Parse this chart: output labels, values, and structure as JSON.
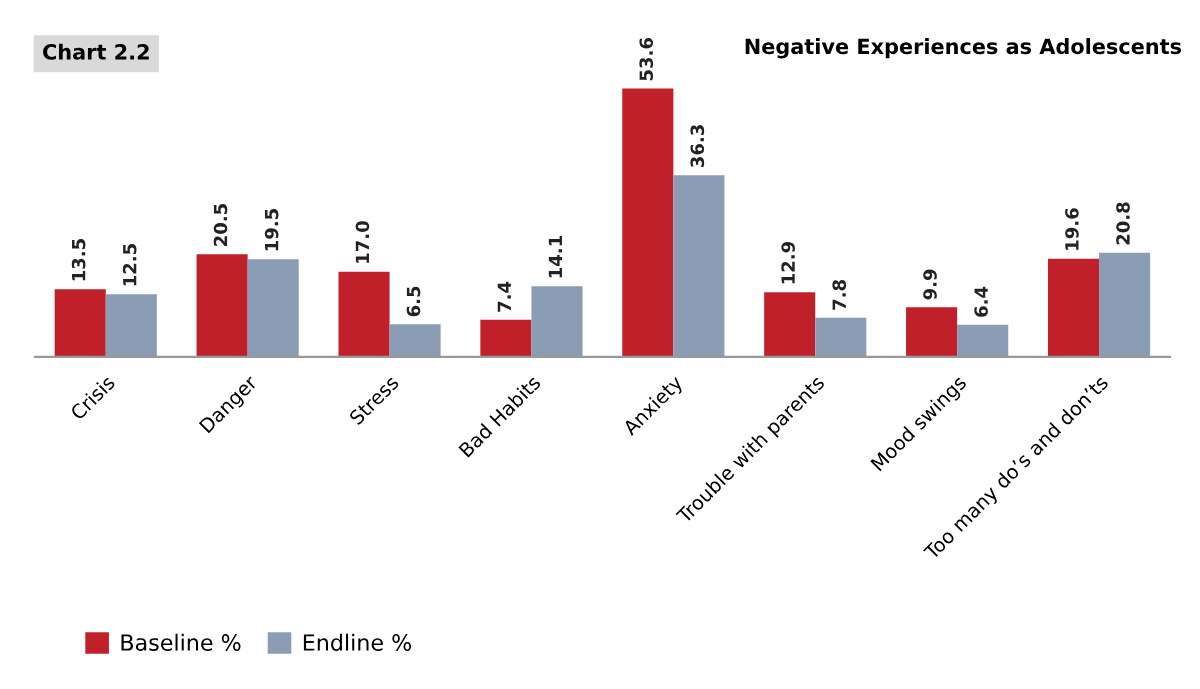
{
  "chart_data": {
    "type": "bar",
    "title": "Negative Experiences as Adolescents",
    "annotations": [
      "Chart 2.2"
    ],
    "categories": [
      "Crisis",
      "Danger",
      "Stress",
      "Bad Habits",
      "Anxiety",
      "Trouble with parents",
      "Mood swings",
      "Too many do’s and don’ts"
    ],
    "series": [
      {
        "name": "Baseline %",
        "color": "#c0202a",
        "values": [
          13.5,
          20.5,
          17.0,
          7.4,
          53.6,
          12.9,
          9.9,
          19.6
        ],
        "value_labels": [
          "13.5",
          "20.5",
          "17.0",
          "7.4",
          "53.6",
          "12.9",
          "9.9",
          "19.6"
        ]
      },
      {
        "name": "Endline %",
        "color": "#8a9db5",
        "values": [
          12.5,
          19.5,
          6.5,
          14.1,
          36.3,
          7.8,
          6.4,
          20.8
        ],
        "value_labels": [
          "12.5",
          "19.5",
          "6.5",
          "14.1",
          "36.3",
          "7.8",
          "6.4",
          "20.8"
        ]
      }
    ],
    "legend": "bottom left",
    "grid": false
  }
}
